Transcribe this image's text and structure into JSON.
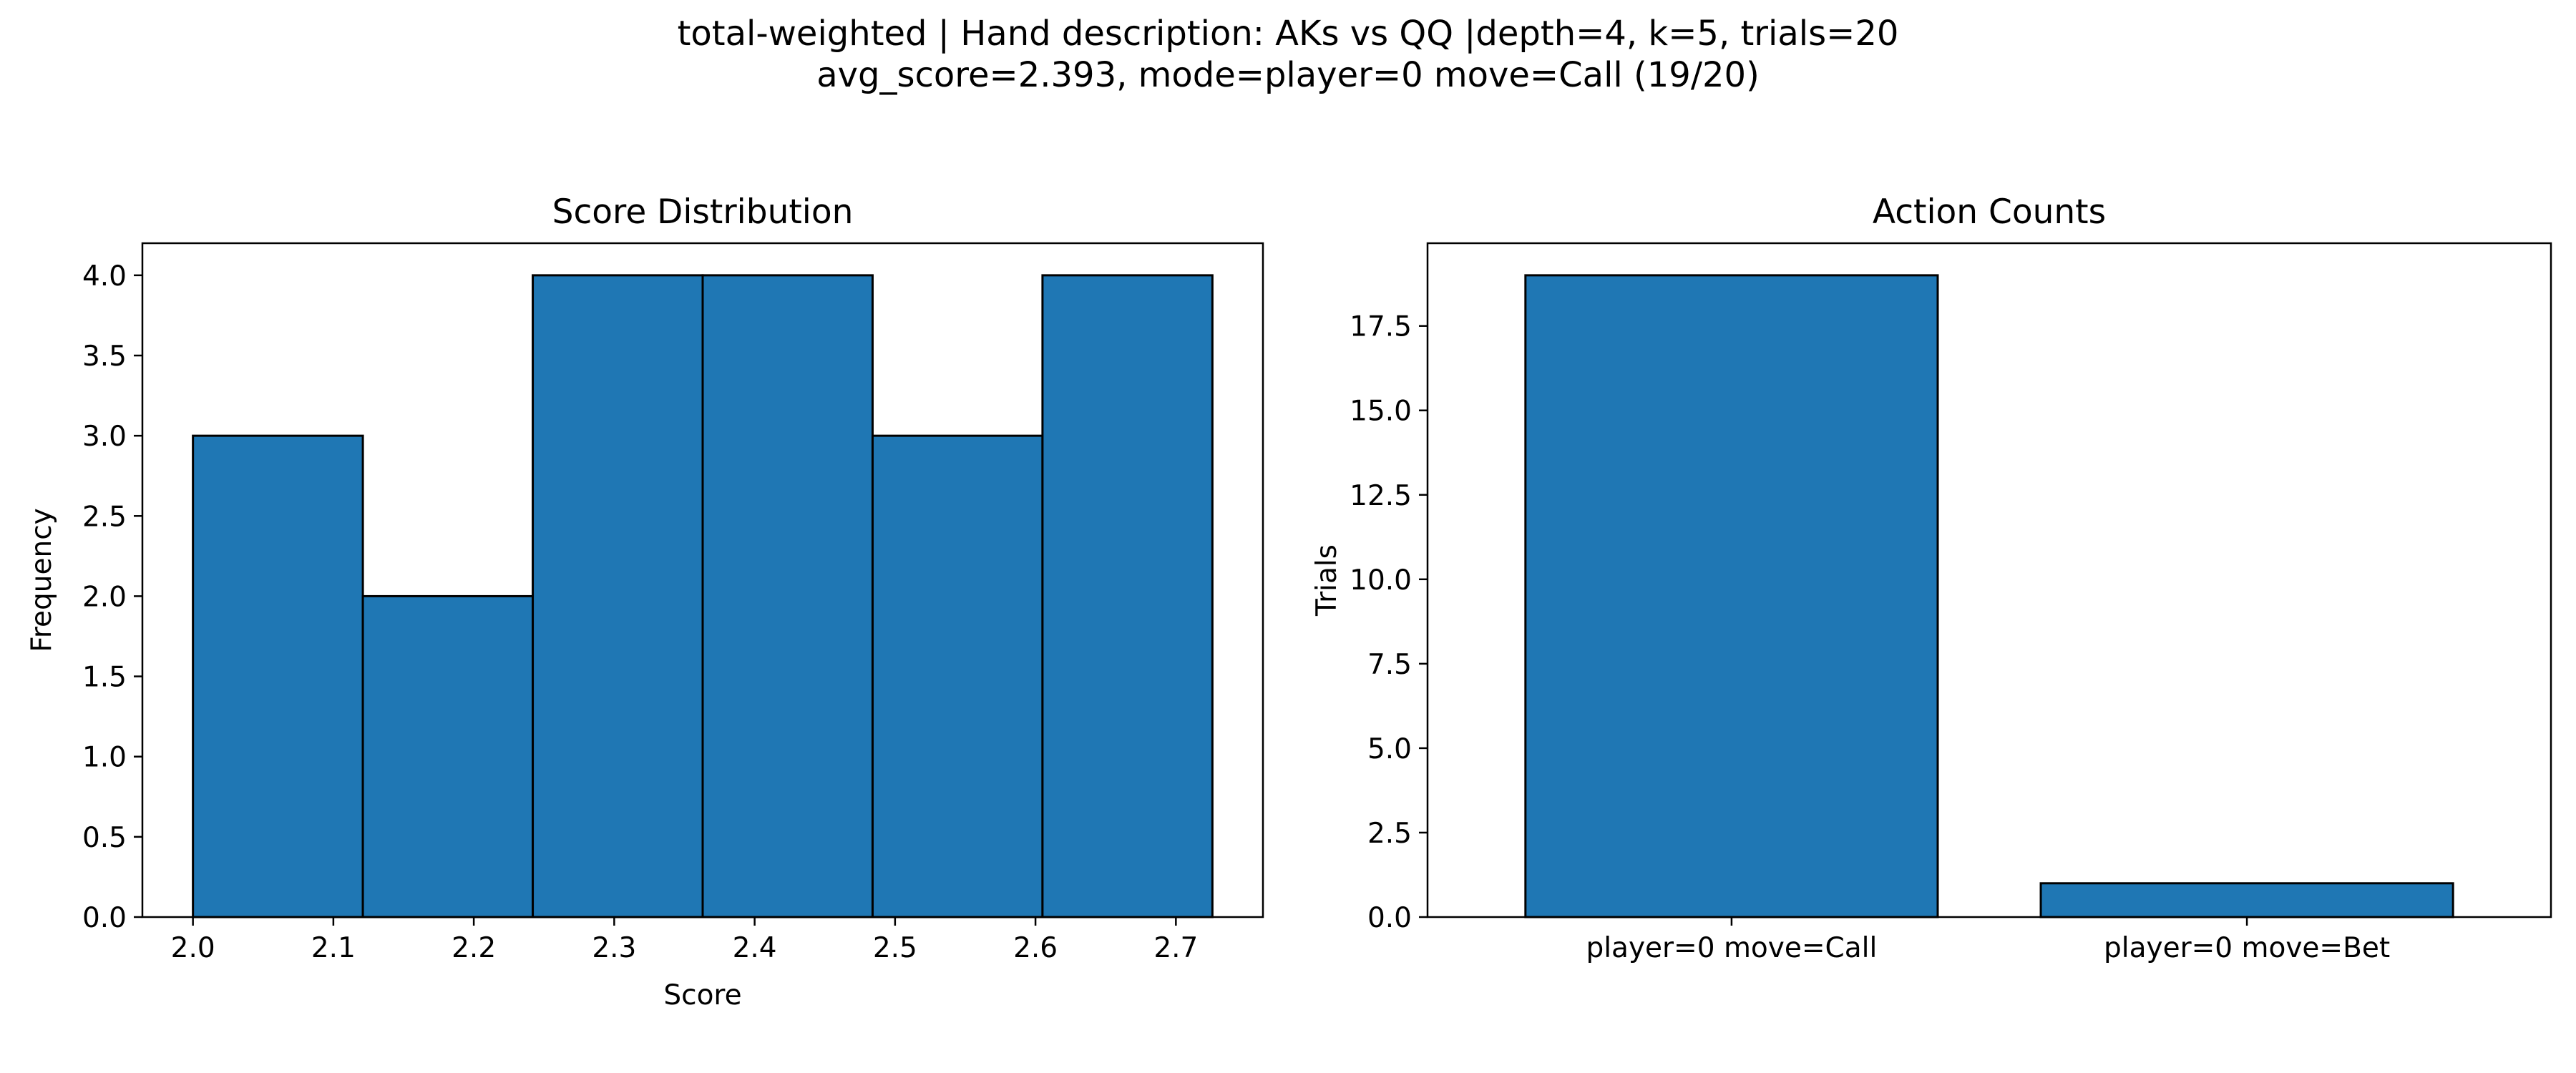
{
  "suptitle": {
    "line1": "total-weighted | Hand description: AKs vs QQ |depth=4, k=5, trials=20",
    "line2": "avg_score=2.393, mode=player=0 move=Call (19/20)"
  },
  "colors": {
    "bar": "#1f77b4",
    "edge": "#000000"
  },
  "chart_data": [
    {
      "type": "bar",
      "subtype": "histogram",
      "title": "Score Distribution",
      "xlabel": "Score",
      "ylabel": "Frequency",
      "bin_edges": [
        2.0,
        2.121,
        2.242,
        2.363,
        2.484,
        2.605,
        2.726
      ],
      "values": [
        3,
        2,
        4,
        4,
        3,
        4
      ],
      "xlim": [
        1.964,
        2.762
      ],
      "ylim": [
        0,
        4.2
      ],
      "xticks": [
        2.0,
        2.1,
        2.2,
        2.3,
        2.4,
        2.5,
        2.6,
        2.7
      ],
      "xtick_labels": [
        "2.0",
        "2.1",
        "2.2",
        "2.3",
        "2.4",
        "2.5",
        "2.6",
        "2.7"
      ],
      "yticks": [
        0,
        0.5,
        1.0,
        1.5,
        2.0,
        2.5,
        3.0,
        3.5,
        4.0
      ],
      "ytick_labels": [
        "0.0",
        "0.5",
        "1.0",
        "1.5",
        "2.0",
        "2.5",
        "3.0",
        "3.5",
        "4.0"
      ],
      "grid": false
    },
    {
      "type": "bar",
      "title": "Action Counts",
      "xlabel": "",
      "ylabel": "Trials",
      "categories": [
        "player=0 move=Call",
        "player=0 move=Bet"
      ],
      "values": [
        19,
        1
      ],
      "ylim": [
        0,
        19.95
      ],
      "yticks": [
        0,
        2.5,
        5.0,
        7.5,
        10.0,
        12.5,
        15.0,
        17.5
      ],
      "ytick_labels": [
        "0.0",
        "2.5",
        "5.0",
        "7.5",
        "10.0",
        "12.5",
        "15.0",
        "17.5"
      ],
      "grid": false
    }
  ]
}
